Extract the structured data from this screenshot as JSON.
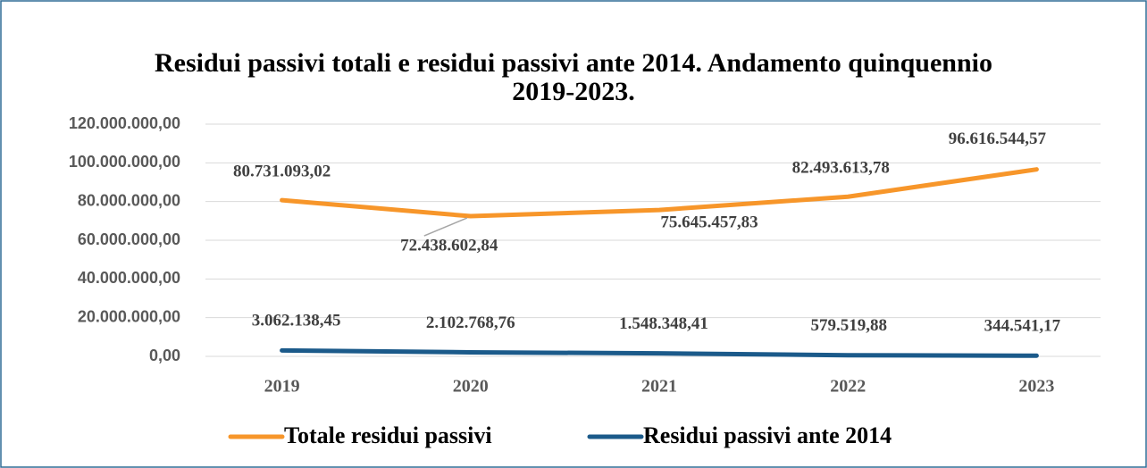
{
  "chart_data": {
    "type": "line",
    "title": "Residui passivi totali e residui passivi ante 2014. Andamento quinquennio 2019-2023.",
    "categories": [
      "2019",
      "2020",
      "2021",
      "2022",
      "2023"
    ],
    "series": [
      {
        "name": "Totale residui passivi",
        "color": "#f7962a",
        "values": [
          80731093.02,
          72438602.84,
          75645457.83,
          82493613.78,
          96616544.57
        ],
        "value_labels": [
          "80.731.093,02",
          "72.438.602,84",
          "75.645.457,83",
          "82.493.613,78",
          "96.616.544,57"
        ]
      },
      {
        "name": "Residui passivi ante 2014",
        "color": "#1b5a8a",
        "values": [
          3062138.45,
          2102768.76,
          1548348.41,
          579519.88,
          344541.17
        ],
        "value_labels": [
          "3.062.138,45",
          "2.102.768,76",
          "1.548.348,41",
          "579.519,88",
          "344.541,17"
        ]
      }
    ],
    "ylim": [
      0,
      120000000
    ],
    "yticks": [
      {
        "value": 0,
        "label": "0,00"
      },
      {
        "value": 20000000,
        "label": "20.000.000,00"
      },
      {
        "value": 40000000,
        "label": "40.000.000,00"
      },
      {
        "value": 60000000,
        "label": "60.000.000,00"
      },
      {
        "value": 80000000,
        "label": "80.000.000,00"
      },
      {
        "value": 100000000,
        "label": "100.000.000,00"
      },
      {
        "value": 120000000,
        "label": "120.000.000,00"
      }
    ],
    "grid": true,
    "legend": "bottom"
  }
}
